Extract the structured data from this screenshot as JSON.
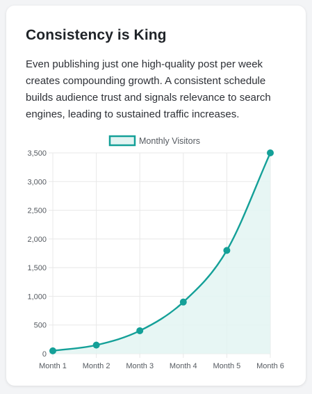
{
  "card": {
    "title": "Consistency is King",
    "body": "Even publishing just one high-quality post per week creates compounding growth. A consistent schedule builds audience trust and signals relevance to search engines, leading to sustained traffic increases."
  },
  "colors": {
    "line": "#14a098",
    "fill": "#e3f4f2",
    "grid": "#e8e8e8",
    "tick": "#555a60"
  },
  "chart_data": {
    "type": "line",
    "categories": [
      "Month 1",
      "Month 2",
      "Month 3",
      "Month 4",
      "Month 5",
      "Month 6"
    ],
    "series": [
      {
        "name": "Monthly Visitors",
        "values": [
          50,
          150,
          400,
          900,
          1800,
          3500
        ]
      }
    ],
    "ylim": [
      0,
      3500
    ],
    "yticks": [
      0,
      500,
      1000,
      1500,
      2000,
      2500,
      3000,
      3500
    ],
    "ytick_labels": [
      "0",
      "500",
      "1,000",
      "1,500",
      "2,000",
      "2,500",
      "3,000",
      "3,500"
    ],
    "fill": true,
    "smooth": true,
    "grid": true,
    "legend": "top-center"
  }
}
